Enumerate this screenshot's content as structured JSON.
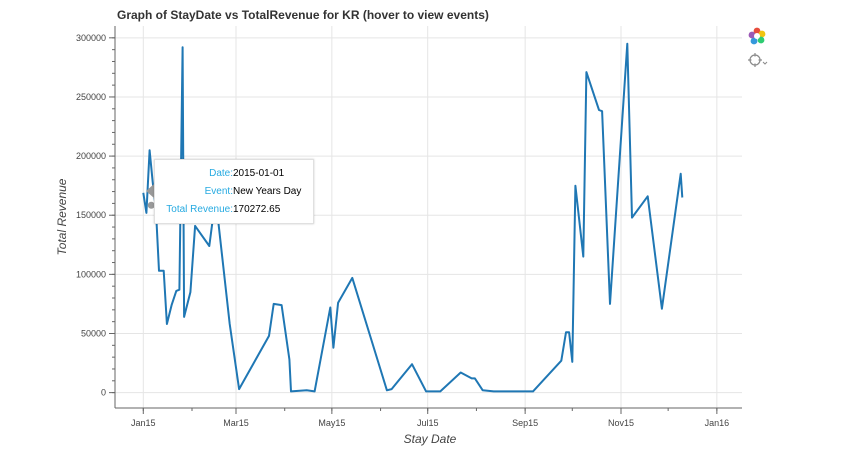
{
  "chart_data": {
    "type": "line",
    "title": "Graph of StayDate vs TotalRevenue for KR (hover to view events)",
    "xlabel": "Stay Date",
    "ylabel": "Total Revenue",
    "x_ticks": [
      "Jan15",
      "Mar15",
      "May15",
      "Jul15",
      "Sep15",
      "Nov15",
      "Jan16"
    ],
    "y_ticks": [
      "0",
      "50000",
      "100000",
      "150000",
      "200000",
      "250000",
      "300000"
    ],
    "xlim": [
      "2014-12-14",
      "2016-01-17"
    ],
    "ylim": [
      -13000,
      310000
    ],
    "grid": true,
    "series": [
      {
        "color": "#1f77b4",
        "points": [
          [
            "2015-01-01",
            169000
          ],
          [
            "2015-01-03",
            152000
          ],
          [
            "2015-01-05",
            205000
          ],
          [
            "2015-01-07",
            178000
          ],
          [
            "2015-01-09",
            155000
          ],
          [
            "2015-01-11",
            103000
          ],
          [
            "2015-01-14",
            103000
          ],
          [
            "2015-01-16",
            58000
          ],
          [
            "2015-01-19",
            74000
          ],
          [
            "2015-01-22",
            86000
          ],
          [
            "2015-01-24",
            87000
          ],
          [
            "2015-01-26",
            292000
          ],
          [
            "2015-01-27",
            64000
          ],
          [
            "2015-01-31",
            85000
          ],
          [
            "2015-02-03",
            141000
          ],
          [
            "2015-02-12",
            124000
          ],
          [
            "2015-02-16",
            165000
          ],
          [
            "2015-02-25",
            58000
          ],
          [
            "2015-03-03",
            3000
          ],
          [
            "2015-03-22",
            48000
          ],
          [
            "2015-03-25",
            75000
          ],
          [
            "2015-03-30",
            74000
          ],
          [
            "2015-04-04",
            28000
          ],
          [
            "2015-04-05",
            1000
          ],
          [
            "2015-04-15",
            2000
          ],
          [
            "2015-04-20",
            1000
          ],
          [
            "2015-04-30",
            72000
          ],
          [
            "2015-05-02",
            38000
          ],
          [
            "2015-05-05",
            76000
          ],
          [
            "2015-05-14",
            97000
          ],
          [
            "2015-06-05",
            2000
          ],
          [
            "2015-06-08",
            3000
          ],
          [
            "2015-06-21",
            24000
          ],
          [
            "2015-06-30",
            1000
          ],
          [
            "2015-07-09",
            1000
          ],
          [
            "2015-07-22",
            17000
          ],
          [
            "2015-07-29",
            12000
          ],
          [
            "2015-07-31",
            12000
          ],
          [
            "2015-08-05",
            2000
          ],
          [
            "2015-08-12",
            1000
          ],
          [
            "2015-08-19",
            1000
          ],
          [
            "2015-09-06",
            1000
          ],
          [
            "2015-09-24",
            27000
          ],
          [
            "2015-09-27",
            51000
          ],
          [
            "2015-09-29",
            51000
          ],
          [
            "2015-10-01",
            26000
          ],
          [
            "2015-10-03",
            175000
          ],
          [
            "2015-10-08",
            115000
          ],
          [
            "2015-10-10",
            271000
          ],
          [
            "2015-10-18",
            239000
          ],
          [
            "2015-10-20",
            238000
          ],
          [
            "2015-10-25",
            75000
          ],
          [
            "2015-11-05",
            295000
          ],
          [
            "2015-11-08",
            148000
          ],
          [
            "2015-11-18",
            166000
          ],
          [
            "2015-11-27",
            71000
          ],
          [
            "2015-12-09",
            185000
          ],
          [
            "2015-12-10",
            165000
          ]
        ]
      }
    ]
  },
  "tooltip": {
    "rows": [
      {
        "key": "Date:",
        "value": "2015-01-01"
      },
      {
        "key": "Event:",
        "value": "New Years Day"
      },
      {
        "key": "Total Revenue:",
        "value": "170272.65"
      }
    ]
  },
  "toolbar": {
    "tools": [
      {
        "icon": "bokeh-logo-icon"
      },
      {
        "icon": "crosshair-hover-icon"
      }
    ]
  }
}
